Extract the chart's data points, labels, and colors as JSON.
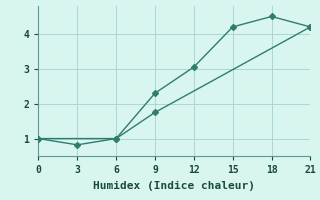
{
  "xlabel": "Humidex (Indice chaleur)",
  "bg_color": "#d8f5f0",
  "line_color": "#2e7d6e",
  "grid_color": "#aad8d0",
  "line1_x": [
    0,
    3,
    6,
    9,
    12,
    15,
    18,
    21
  ],
  "line1_y": [
    1.0,
    0.82,
    1.0,
    2.3,
    3.05,
    4.2,
    4.5,
    4.2
  ],
  "line2_x": [
    0,
    6,
    9,
    21
  ],
  "line2_y": [
    1.0,
    1.0,
    1.75,
    4.2
  ],
  "xlim": [
    0,
    21
  ],
  "ylim": [
    0.5,
    4.8
  ],
  "xticks": [
    0,
    3,
    6,
    9,
    12,
    15,
    18,
    21
  ],
  "yticks": [
    1,
    2,
    3,
    4
  ],
  "marker": "D",
  "marker_size": 3,
  "linewidth": 1.0,
  "tick_labelsize": 7,
  "xlabel_fontsize": 8
}
